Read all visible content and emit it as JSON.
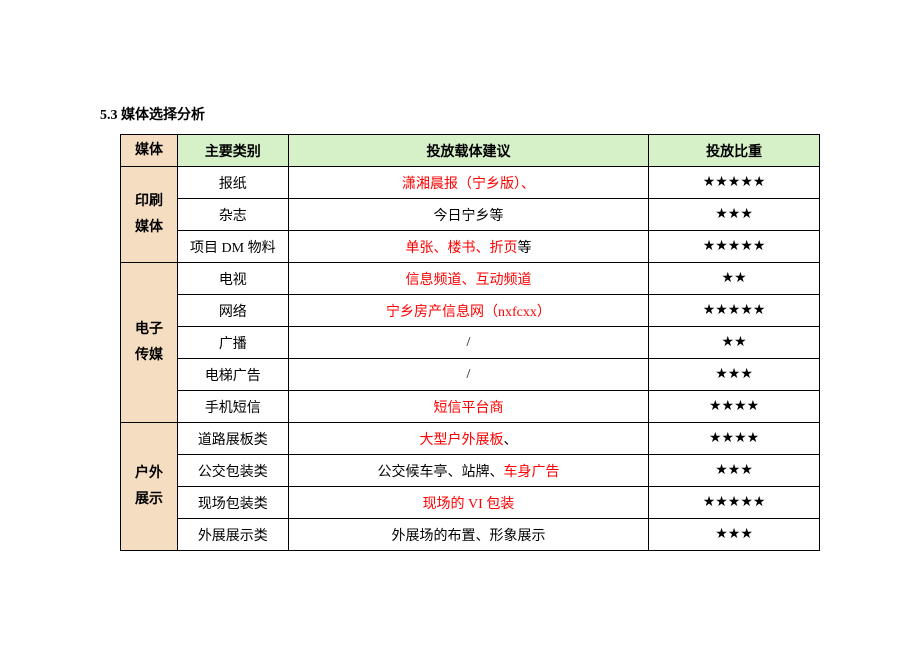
{
  "section_title": "5.3 媒体选择分析",
  "headers": {
    "media": "媒体",
    "main_type": "主要类别",
    "suggestion": "投放载体建议",
    "weight": "投放比重"
  },
  "colors": {
    "header_bg": "#d6f0c8",
    "media_bg": "#f5ddc2",
    "highlight_text": "#ff0000",
    "normal_text": "#000000",
    "border": "#000000",
    "page_bg": "#ffffff"
  },
  "groups": [
    {
      "media_label": "印刷\n媒体",
      "rows": [
        {
          "type": "报纸",
          "sugg_parts": [
            {
              "text": "潇湘晨报（宁乡版）、",
              "red": true
            }
          ],
          "stars": "★★★★★"
        },
        {
          "type": "杂志",
          "sugg_parts": [
            {
              "text": "今日宁乡等",
              "red": false
            }
          ],
          "stars": "★★★"
        },
        {
          "type": "项目 DM 物料",
          "sugg_parts": [
            {
              "text": "单张、楼书、折页",
              "red": true
            },
            {
              "text": "等",
              "red": false
            }
          ],
          "stars": "★★★★★"
        }
      ]
    },
    {
      "media_label": "电子\n传媒",
      "rows": [
        {
          "type": "电视",
          "sugg_parts": [
            {
              "text": "信息频道、互动频道",
              "red": true
            }
          ],
          "stars": "★★"
        },
        {
          "type": "网络",
          "sugg_parts": [
            {
              "text": "宁乡房产信息网（nxfcxx）",
              "red": true
            }
          ],
          "stars": "★★★★★"
        },
        {
          "type": "广播",
          "sugg_parts": [
            {
              "text": "/",
              "red": false
            }
          ],
          "stars": "★★"
        },
        {
          "type": "电梯广告",
          "sugg_parts": [
            {
              "text": "/",
              "red": false
            }
          ],
          "stars": "★★★"
        },
        {
          "type": "手机短信",
          "sugg_parts": [
            {
              "text": "短信平台商",
              "red": true
            }
          ],
          "stars": "★★★★"
        }
      ]
    },
    {
      "media_label": "户外\n展示",
      "rows": [
        {
          "type": "道路展板类",
          "sugg_parts": [
            {
              "text": "大型户外展板",
              "red": true
            },
            {
              "text": "、",
              "red": false
            }
          ],
          "stars": "★★★★"
        },
        {
          "type": "公交包装类",
          "sugg_parts": [
            {
              "text": "公交候车亭、站牌、",
              "red": false
            },
            {
              "text": "车身广告",
              "red": true
            }
          ],
          "stars": "★★★"
        },
        {
          "type": "现场包装类",
          "sugg_parts": [
            {
              "text": "现场的 VI 包装",
              "red": true
            }
          ],
          "stars": "★★★★★"
        },
        {
          "type": "外展展示类",
          "sugg_parts": [
            {
              "text": "外展场的布置、形象展示",
              "red": false
            }
          ],
          "stars": "★★★"
        }
      ]
    }
  ]
}
